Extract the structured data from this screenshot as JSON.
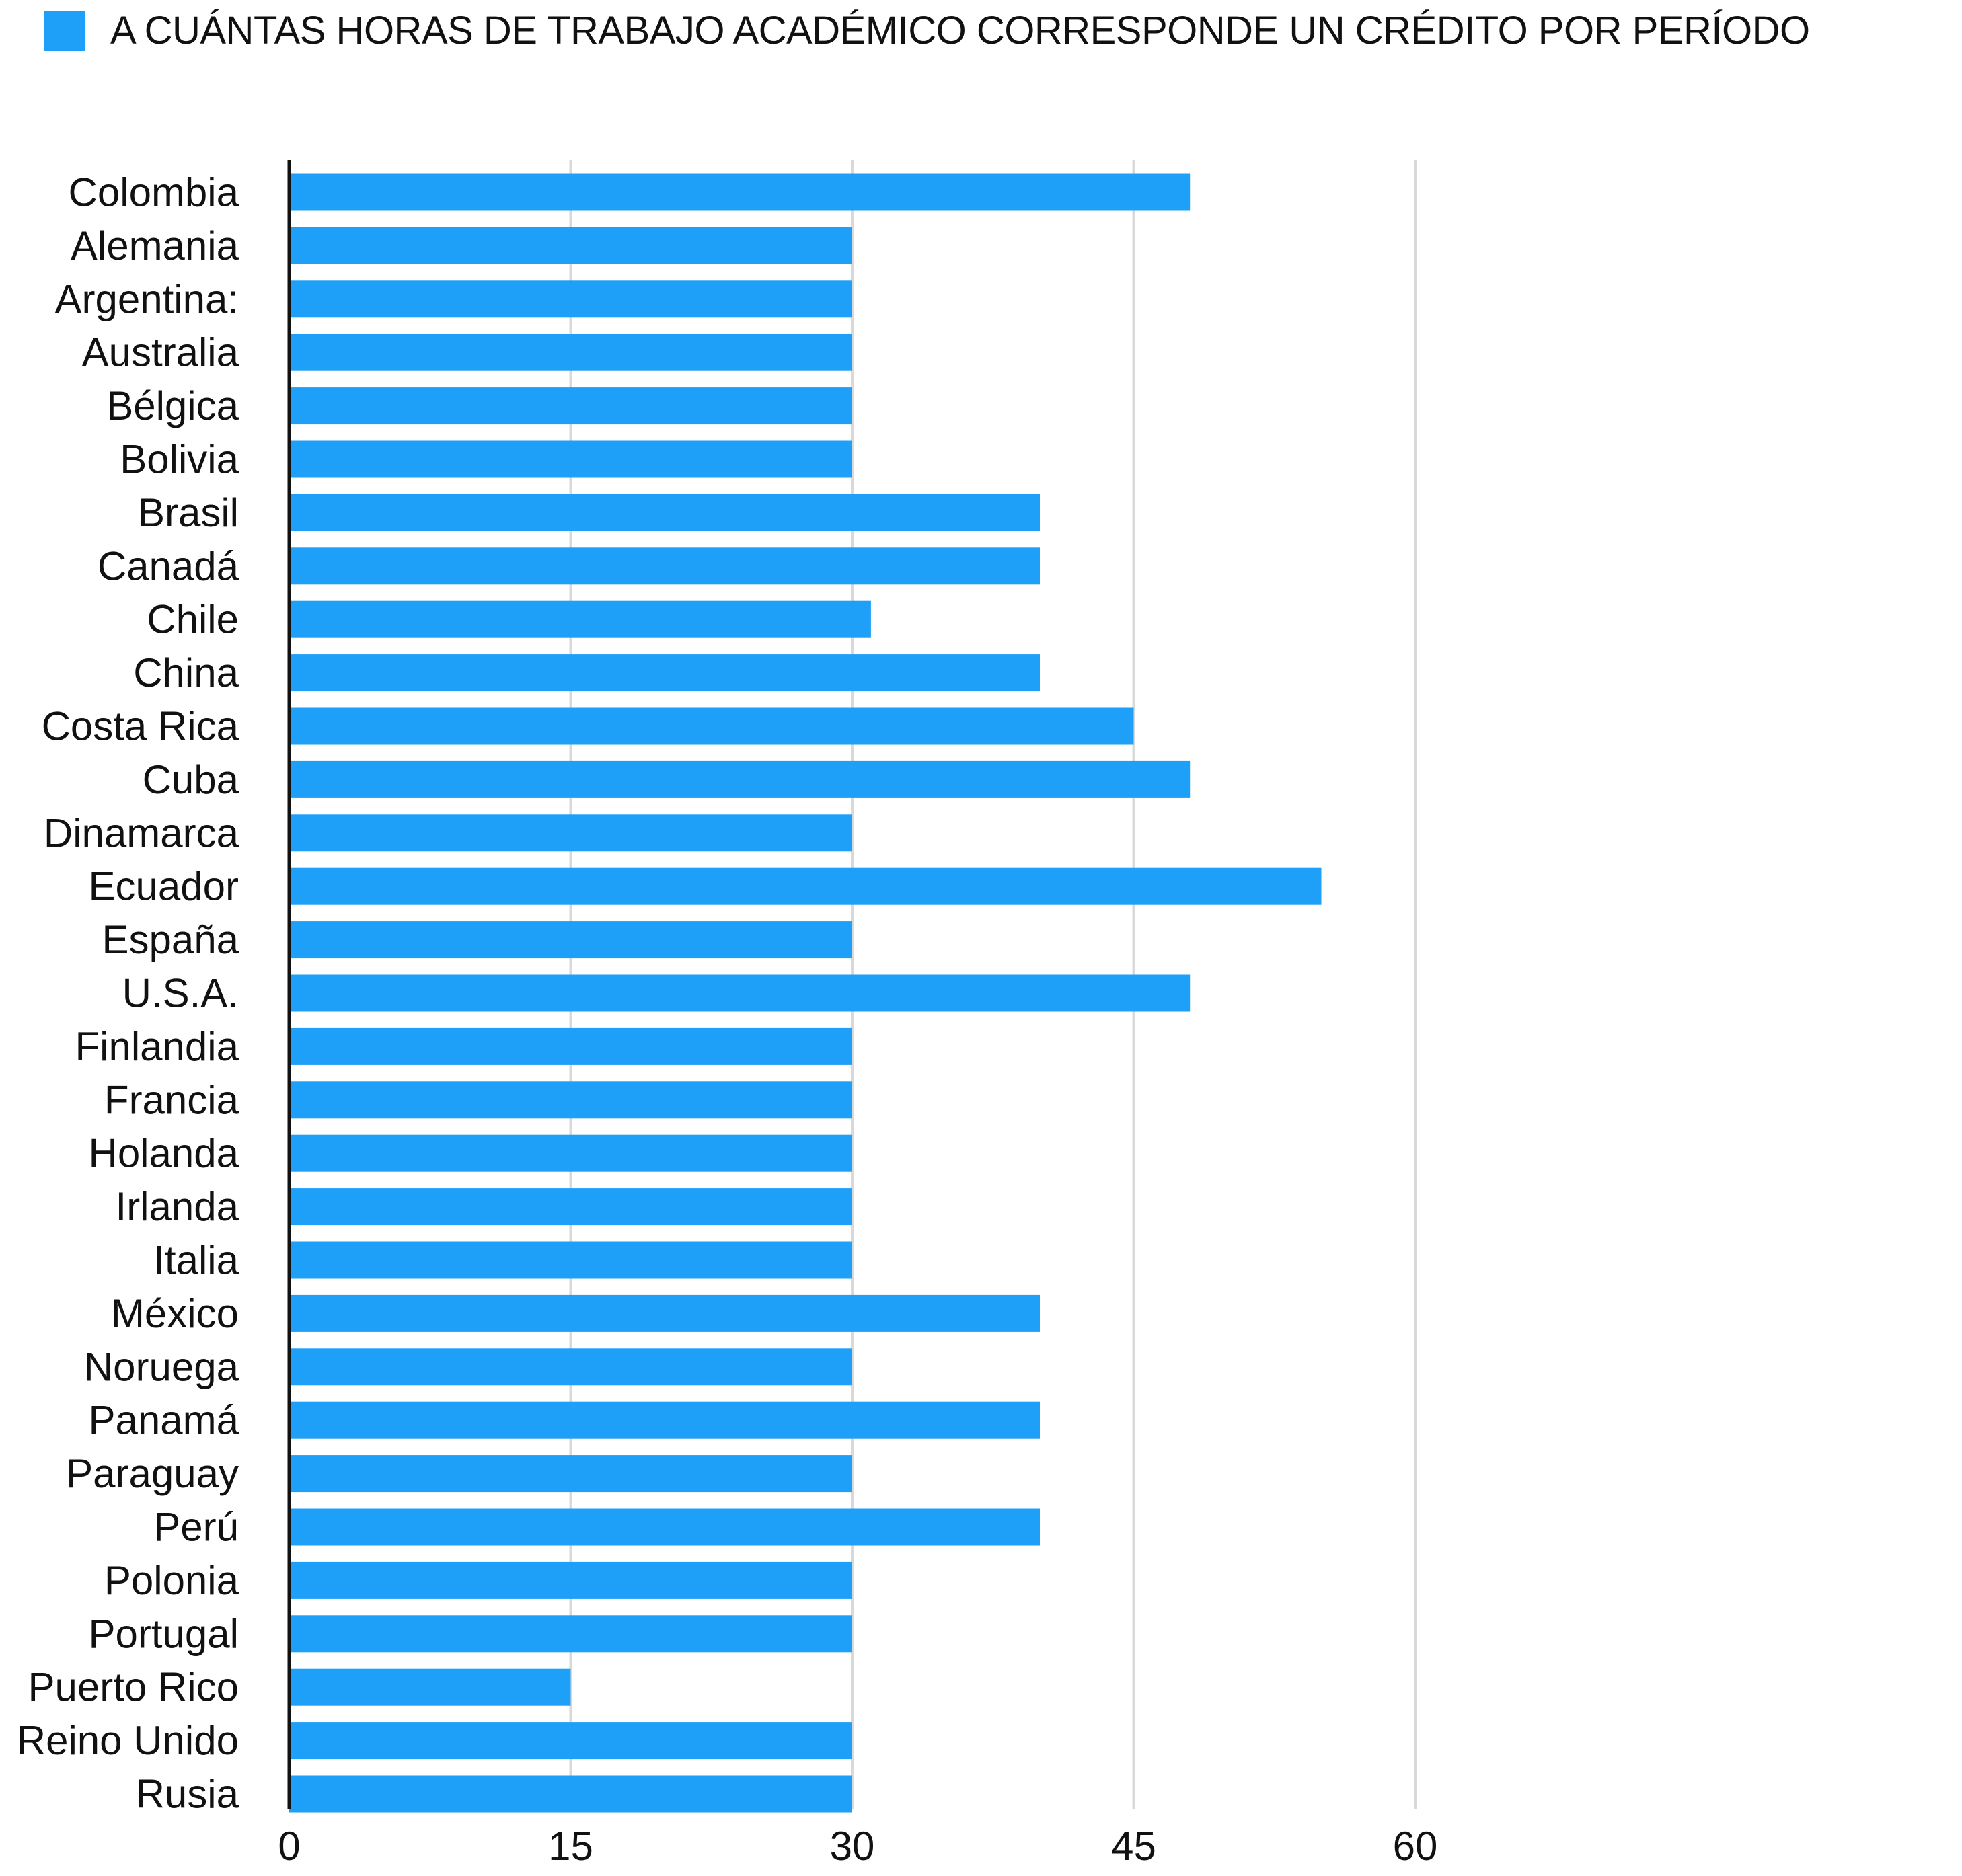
{
  "chart_data": {
    "type": "bar",
    "orientation": "horizontal",
    "legend_position": "top-left",
    "grid": true,
    "series": [
      {
        "name": "A CUÁNTAS HORAS DE TRABAJO ACADÉMICO CORRESPONDE UN CRÉDITO POR PERÍODO",
        "color": "#1E9FF8",
        "values": [
          48,
          30,
          30,
          30,
          30,
          30,
          40,
          40,
          31,
          40,
          45,
          48,
          30,
          55,
          30,
          48,
          30,
          30,
          30,
          30,
          30,
          40,
          30,
          40,
          30,
          40,
          30,
          30,
          15,
          30,
          30
        ]
      }
    ],
    "categories": [
      "Colombia",
      "Alemania",
      "Argentina:",
      "Australia",
      "Bélgica",
      "Bolivia",
      "Brasil",
      "Canadá",
      "Chile",
      "China",
      "Costa Rica",
      "Cuba",
      "Dinamarca",
      "Ecuador",
      "España",
      "U.S.A.",
      "Finlandia",
      "Francia",
      "Holanda",
      "Irlanda",
      "Italia",
      "México",
      "Noruega",
      "Panamá",
      "Paraguay",
      "Perú",
      "Polonia",
      "Portugal",
      "Puerto Rico",
      "Reino Unido",
      "Rusia"
    ],
    "xlim": [
      0,
      60
    ],
    "xticks": [
      "0",
      "15",
      "30",
      "45",
      "60"
    ],
    "tick_values": [
      0,
      15,
      30,
      45,
      60
    ],
    "colors": {
      "bar": "#1E9FF8",
      "grid": "#D9D9D9",
      "axis": "#111111"
    }
  }
}
